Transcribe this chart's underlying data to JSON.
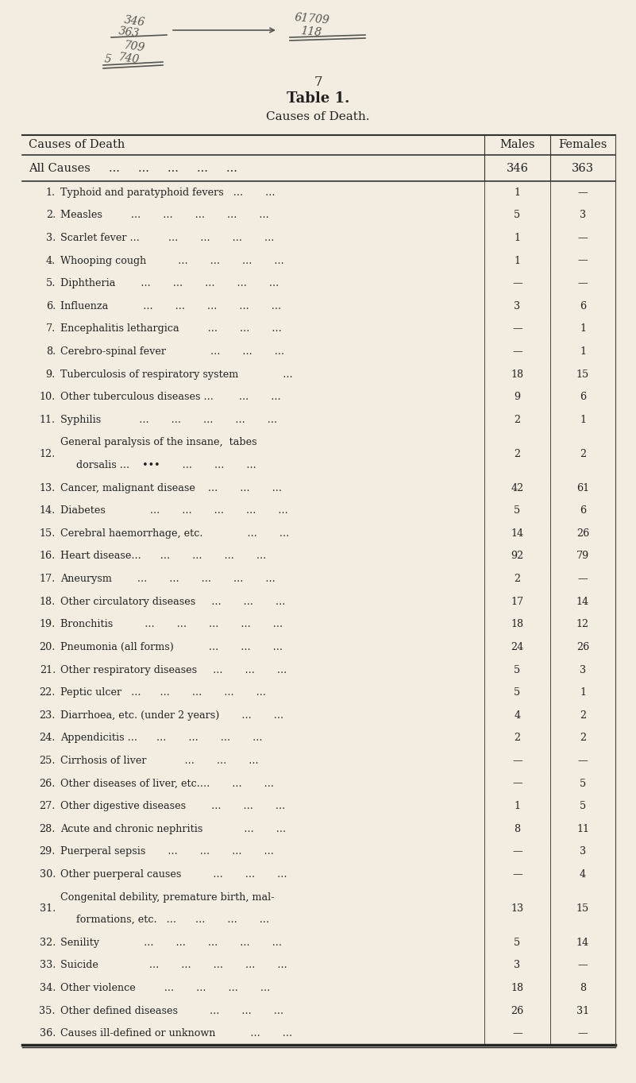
{
  "page_number": "7",
  "title": "Table 1.",
  "subtitle": "Causes of Death.",
  "header_col1": "Causes of Death",
  "header_col2": "Males",
  "header_col3": "Females",
  "all_causes_label": "All Causes     ...     ...     ...     ...     ...",
  "all_causes_males": "346",
  "all_causes_females": "363",
  "rows": [
    {
      "num": "1.",
      "cause": "Typhoid and paratyphoid fevers   ...       ...",
      "males": "1",
      "females": "—"
    },
    {
      "num": "2.",
      "cause": "Measles         ...       ...       ...       ...       ...",
      "males": "5",
      "females": "3"
    },
    {
      "num": "3.",
      "cause": "Scarlet fever ...         ...       ...       ...       ...",
      "males": "1",
      "females": "—"
    },
    {
      "num": "4.",
      "cause": "Whooping cough          ...       ...       ...       ...",
      "males": "1",
      "females": "—"
    },
    {
      "num": "5.",
      "cause": "Diphtheria        ...       ...       ...       ...       ...",
      "males": "—",
      "females": "—"
    },
    {
      "num": "6.",
      "cause": "Influenza           ...       ...       ...       ...       ...",
      "males": "3",
      "females": "6"
    },
    {
      "num": "7.",
      "cause": "Encephalitis lethargica         ...       ...       ...",
      "males": "—",
      "females": "1"
    },
    {
      "num": "8.",
      "cause": "Cerebro-spinal fever              ...       ...       ...",
      "males": "—",
      "females": "1"
    },
    {
      "num": "9.",
      "cause": "Tuberculosis of respiratory system              ...",
      "males": "18",
      "females": "15"
    },
    {
      "num": "10.",
      "cause": "Other tuberculous diseases ...        ...       ...",
      "males": "9",
      "females": "6"
    },
    {
      "num": "11.",
      "cause": "Syphilis            ...       ...       ...       ...       ...",
      "males": "2",
      "females": "1"
    },
    {
      "num": "12.",
      "cause": "General paralysis of the insane,  tabes",
      "cause2": "dorsalis ...    •••       ...       ...       ...",
      "males": "2",
      "females": "2"
    },
    {
      "num": "13.",
      "cause": "Cancer, malignant disease    ...       ...       ...",
      "males": "42",
      "females": "61"
    },
    {
      "num": "14.",
      "cause": "Diabetes              ...       ...       ...       ...       ...",
      "males": "5",
      "females": "6"
    },
    {
      "num": "15.",
      "cause": "Cerebral haemorrhage, etc.              ...       ...",
      "males": "14",
      "females": "26"
    },
    {
      "num": "16.",
      "cause": "Heart disease...      ...       ...       ...       ...",
      "males": "92",
      "females": "79"
    },
    {
      "num": "17.",
      "cause": "Aneurysm        ...       ...       ...       ...       ...",
      "males": "2",
      "females": "—"
    },
    {
      "num": "18.",
      "cause": "Other circulatory diseases     ...       ...       ...",
      "males": "17",
      "females": "14"
    },
    {
      "num": "19.",
      "cause": "Bronchitis          ...       ...       ...       ...       ...",
      "males": "18",
      "females": "12"
    },
    {
      "num": "20.",
      "cause": "Pneumonia (all forms)           ...       ...       ...",
      "males": "24",
      "females": "26"
    },
    {
      "num": "21.",
      "cause": "Other respiratory diseases     ...       ...       ...",
      "males": "5",
      "females": "3"
    },
    {
      "num": "22.",
      "cause": "Peptic ulcer   ...      ...       ...       ...       ...",
      "males": "5",
      "females": "1"
    },
    {
      "num": "23.",
      "cause": "Diarrhoea, etc. (under 2 years)       ...       ...",
      "males": "4",
      "females": "2"
    },
    {
      "num": "24.",
      "cause": "Appendicitis ...      ...       ...       ...       ...",
      "males": "2",
      "females": "2"
    },
    {
      "num": "25.",
      "cause": "Cirrhosis of liver            ...       ...       ...",
      "males": "—",
      "females": "—"
    },
    {
      "num": "26.",
      "cause": "Other diseases of liver, etc....       ...       ...",
      "males": "—",
      "females": "5"
    },
    {
      "num": "27.",
      "cause": "Other digestive diseases        ...       ...       ...",
      "males": "1",
      "females": "5"
    },
    {
      "num": "28.",
      "cause": "Acute and chronic nephritis             ...       ...",
      "males": "8",
      "females": "11"
    },
    {
      "num": "29.",
      "cause": "Puerperal sepsis       ...       ...       ...       ...",
      "males": "—",
      "females": "3"
    },
    {
      "num": "30.",
      "cause": "Other puerperal causes          ...       ...       ...",
      "males": "—",
      "females": "4"
    },
    {
      "num": "31.",
      "cause": "Congenital debility, premature birth, mal-",
      "cause2": "formations, etc.   ...      ...       ...       ...",
      "males": "13",
      "females": "15"
    },
    {
      "num": "32.",
      "cause": "Senility              ...       ...       ...       ...       ...",
      "males": "5",
      "females": "14"
    },
    {
      "num": "33.",
      "cause": "Suicide                ...       ...       ...       ...       ...",
      "males": "3",
      "females": "—"
    },
    {
      "num": "34.",
      "cause": "Other violence         ...       ...       ...       ...",
      "males": "18",
      "females": "8"
    },
    {
      "num": "35.",
      "cause": "Other defined diseases          ...       ...       ...",
      "males": "26",
      "females": "31"
    },
    {
      "num": "36.",
      "cause": "Causes ill-defined or unknown           ...       ...",
      "males": "—",
      "females": "—"
    }
  ],
  "bg_color": "#f2ede0",
  "text_color": "#222222",
  "fig_width": 8.01,
  "fig_height": 13.63,
  "dpi": 100
}
